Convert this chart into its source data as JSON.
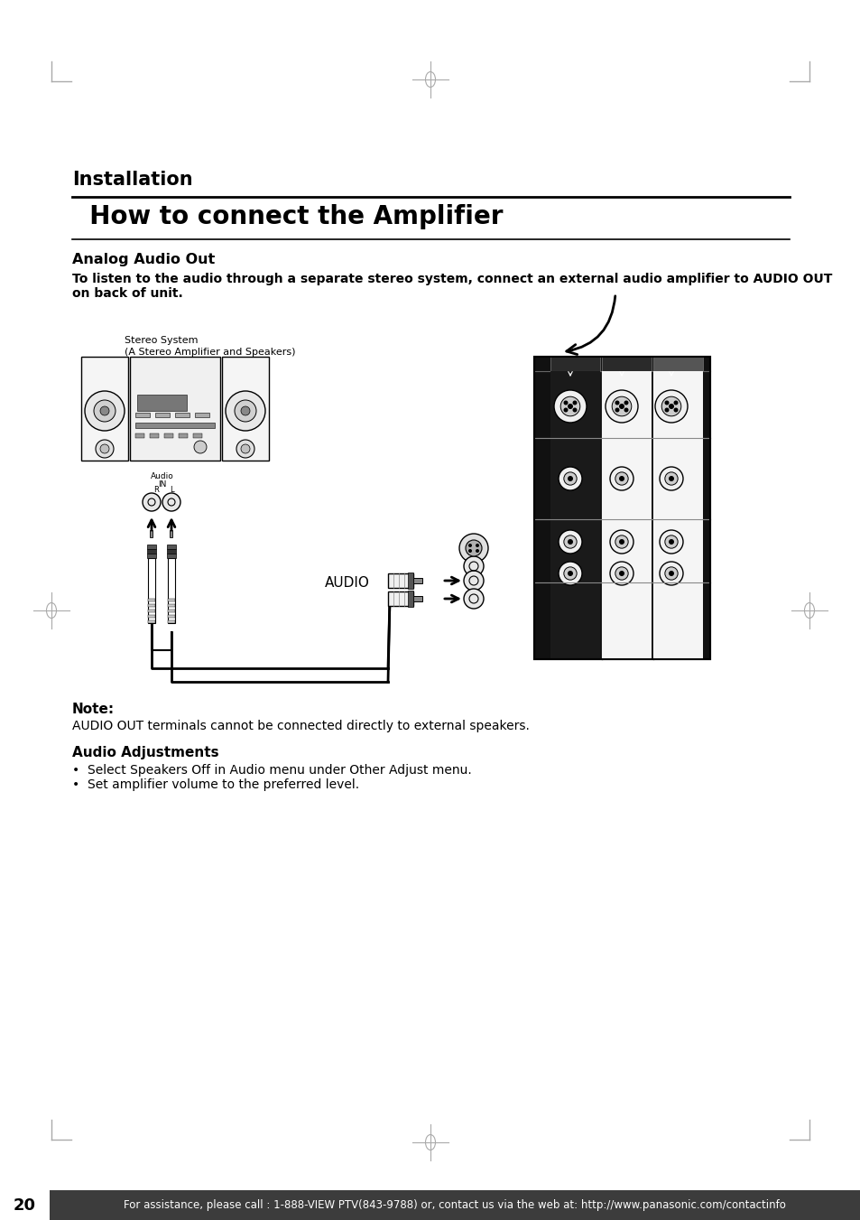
{
  "bg_color": "#ffffff",
  "title_section": "Installation",
  "main_title": "  How to connect the Amplifier",
  "section_heading": "Analog Audio Out",
  "body_line1": "To listen to the audio through a separate stereo system, connect an external audio amplifier to AUDIO OUT",
  "body_line2": "on back of unit.",
  "stereo_label1": "Stereo System",
  "stereo_label2": "(A Stereo Amplifier and Speakers)",
  "audio_in_label": "Audio",
  "audio_in_sub": "IN",
  "audio_in_r": "R",
  "audio_in_l": "L",
  "audio_label": "AUDIO",
  "note_heading": "Note:",
  "note_text": "AUDIO OUT terminals cannot be connected directly to external speakers.",
  "adj_heading": "Audio Adjustments",
  "adj_text1": "•  Select Speakers Off in Audio menu under Other Adjust menu.",
  "adj_text2": "•  Set amplifier volume to the preferred level.",
  "footer_text": "For assistance, please call : 1-888-VIEW PTV(843-9788) or, contact us via the web at: http://www.panasonic.com/contactinfo",
  "page_number": "20",
  "text_color": "#000000",
  "footer_bg": "#3c3c3c",
  "footer_text_color": "#ffffff",
  "corner_color": "#aaaaaa",
  "panel_bg": "#111111",
  "panel_col1_bg": "#111111",
  "panel_col2_bg": "#d0d0d0",
  "panel_col3_bg": "#cccccc"
}
